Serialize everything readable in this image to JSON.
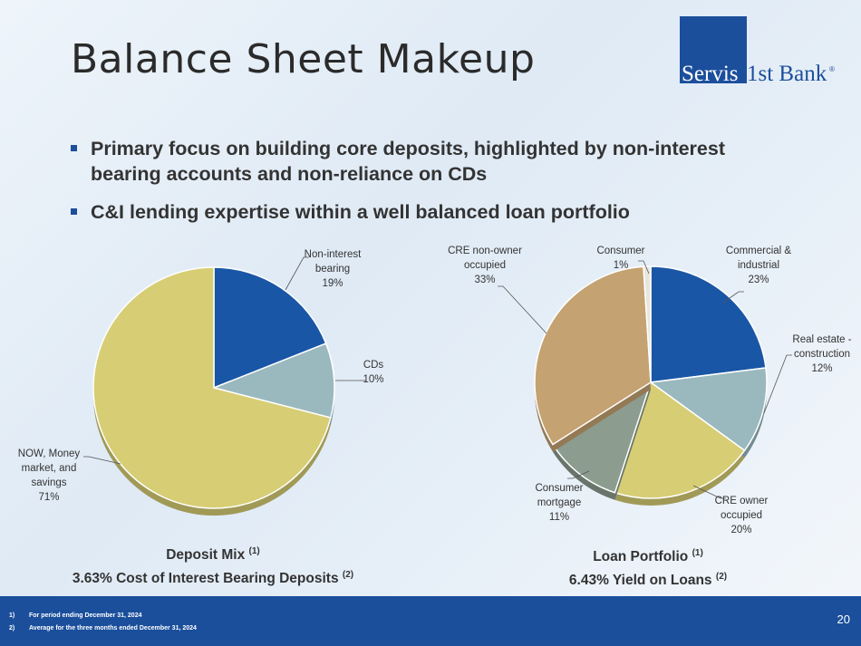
{
  "title": "Balance Sheet Makeup",
  "logo": {
    "part1": "Servis",
    "part2": "1st Bank",
    "mark": "®"
  },
  "bullets": [
    "Primary focus on building core deposits, highlighted by non-interest bearing accounts and non-reliance on CDs",
    "C&I lending expertise within a well balanced loan portfolio"
  ],
  "chart_data": [
    {
      "type": "pie",
      "caption_line1": "Deposit Mix",
      "caption_sup1": "(1)",
      "caption_line2": "3.63% Cost of Interest Bearing Deposits",
      "caption_sup2": "(2)",
      "slices": [
        {
          "label_lines": [
            "Non-interest",
            "bearing"
          ],
          "value": 19,
          "pct": "19%",
          "color": "#1a56a6"
        },
        {
          "label_lines": [
            "CDs"
          ],
          "value": 10,
          "pct": "10%",
          "color": "#9ab9bf"
        },
        {
          "label_lines": [
            "NOW, Money",
            "market, and",
            "savings"
          ],
          "value": 71,
          "pct": "71%",
          "color": "#d7cd74"
        }
      ]
    },
    {
      "type": "pie",
      "caption_line1": "Loan Portfolio",
      "caption_sup1": "(1)",
      "caption_line2": "6.43% Yield on Loans",
      "caption_sup2": "(2)",
      "slices": [
        {
          "label_lines": [
            "Commercial &",
            "industrial"
          ],
          "value": 23,
          "pct": "23%",
          "color": "#1a56a6"
        },
        {
          "label_lines": [
            "Real estate -",
            "construction"
          ],
          "value": 12,
          "pct": "12%",
          "color": "#9ab9bf"
        },
        {
          "label_lines": [
            "CRE owner",
            "occupied"
          ],
          "value": 20,
          "pct": "20%",
          "color": "#d7cd74"
        },
        {
          "label_lines": [
            "Consumer",
            "mortgage"
          ],
          "value": 11,
          "pct": "11%",
          "color": "#8c9c8f"
        },
        {
          "label_lines": [
            "CRE non-owner",
            "occupied"
          ],
          "value": 33,
          "pct": "33%",
          "color": "#c4a271"
        },
        {
          "label_lines": [
            "Consumer"
          ],
          "value": 1,
          "pct": "1%",
          "color": "#e8e6dc"
        }
      ]
    }
  ],
  "footnotes": [
    {
      "num": "1)",
      "text": "For period ending December 31, 2024"
    },
    {
      "num": "2)",
      "text": "Average for the three months ended December 31, 2024"
    }
  ],
  "page_number": "20"
}
